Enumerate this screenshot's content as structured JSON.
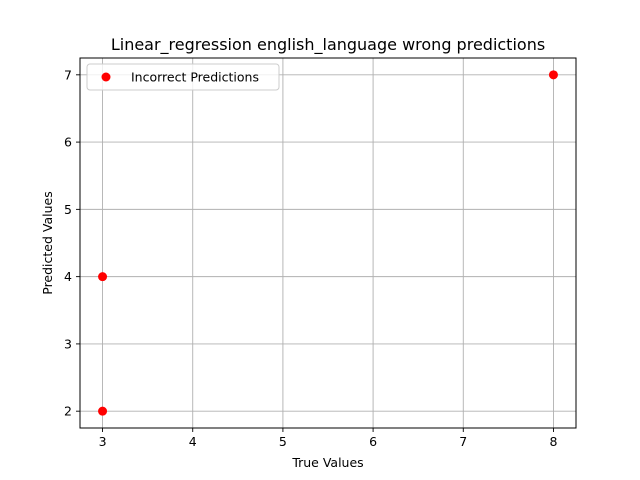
{
  "chart_data": {
    "type": "scatter",
    "title": "Linear_regression english_language wrong predictions",
    "xlabel": "True Values",
    "ylabel": "Predicted Values",
    "xlim": [
      2.75,
      8.25
    ],
    "ylim": [
      1.75,
      7.25
    ],
    "xticks": [
      3,
      4,
      5,
      6,
      7,
      8
    ],
    "yticks": [
      2,
      3,
      4,
      5,
      6,
      7
    ],
    "grid": true,
    "legend_position": "top-left",
    "series": [
      {
        "name": "Incorrect Predictions",
        "color": "#ff0000",
        "points": [
          {
            "x": 3,
            "y": 2
          },
          {
            "x": 3,
            "y": 4
          },
          {
            "x": 8,
            "y": 7
          }
        ]
      }
    ]
  }
}
